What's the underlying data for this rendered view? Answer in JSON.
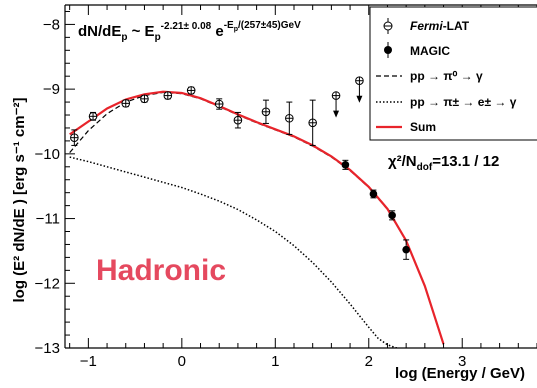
{
  "colors": {
    "sum": "#e8242b",
    "badge": "#e5495f",
    "axis": "#000000"
  },
  "annotations": {
    "formula_base": "dN/dE",
    "formula_sub": "p",
    "formula_mid": " ~ E",
    "formula_sub2": "p",
    "formula_exp": "-2.21± 0.08",
    "formula_e": " e",
    "formula_exp2": "-E",
    "formula_exp2_sub": "p",
    "formula_exp2_tail": "/(257±45)GeV",
    "chi2_text": "χ²/N",
    "chi2_sub": "dof",
    "chi2_val": "=13.1 / 12",
    "badge": "Hadronic"
  },
  "legend": {
    "fermi_name": "Fermi",
    "fermi_suffix": "-LAT",
    "magic": "MAGIC",
    "pp_pi0": "pp →  π⁰ → γ",
    "pp_pipm": "pp →  π± → e± → γ",
    "sum": "Sum"
  },
  "chart_data": {
    "type": "line",
    "xlabel": "log (Energy / GeV)",
    "ylabel": "log (E² dN/dE ) [erg s⁻¹ cm⁻²]",
    "xlim": [
      -1.25,
      3.8
    ],
    "ylim": [
      -13,
      -7.7
    ],
    "xticks": [
      -1,
      0,
      1,
      2,
      3
    ],
    "xticklabels": [
      "−1",
      "0",
      "1",
      "2",
      "3"
    ],
    "yticks": [
      -13,
      -12,
      -11,
      -10,
      -9,
      -8
    ],
    "yticklabels": [
      "−13",
      "−12",
      "−11",
      "−10",
      "−9",
      "−8"
    ],
    "series": [
      {
        "name": "Fermi-LAT",
        "kind": "errorbar",
        "points": [
          {
            "x": -1.15,
            "y": -9.75,
            "err": 0.12
          },
          {
            "x": -0.95,
            "y": -9.42,
            "err": 0.06
          },
          {
            "x": -0.6,
            "y": -9.22,
            "err": 0.05
          },
          {
            "x": -0.4,
            "y": -9.15,
            "err": 0.05
          },
          {
            "x": -0.15,
            "y": -9.1,
            "err": 0.05
          },
          {
            "x": 0.1,
            "y": -9.02,
            "err": 0.05
          },
          {
            "x": 0.4,
            "y": -9.23,
            "err": 0.08
          },
          {
            "x": 0.6,
            "y": -9.48,
            "err": 0.12
          },
          {
            "x": 0.9,
            "y": -9.35,
            "err": 0.18
          },
          {
            "x": 1.15,
            "y": -9.45,
            "err": 0.25
          },
          {
            "x": 1.4,
            "y": -9.52,
            "err": 0.35
          }
        ],
        "upper_limits": [
          {
            "x": 1.65,
            "y": -9.1
          },
          {
            "x": 1.9,
            "y": -8.87
          }
        ]
      },
      {
        "name": "MAGIC",
        "kind": "errorbar",
        "points": [
          {
            "x": 1.75,
            "y": -10.17,
            "err": 0.07
          },
          {
            "x": 2.05,
            "y": -10.62,
            "err": 0.06
          },
          {
            "x": 2.25,
            "y": -10.95,
            "err": 0.07
          },
          {
            "x": 2.4,
            "y": -11.48,
            "err": 0.15
          }
        ]
      },
      {
        "name": "pp → π⁰ → γ",
        "kind": "dashed",
        "x": [
          -1.2,
          -1.0,
          -0.8,
          -0.6,
          -0.4,
          -0.2,
          0.0,
          0.2,
          0.4,
          0.6,
          0.8,
          1.0,
          1.2,
          1.4,
          1.6,
          1.8,
          2.0,
          2.2,
          2.4,
          2.6,
          2.8
        ],
        "y": [
          -9.98,
          -9.64,
          -9.38,
          -9.2,
          -9.1,
          -9.05,
          -9.07,
          -9.15,
          -9.27,
          -9.4,
          -9.52,
          -9.63,
          -9.74,
          -9.88,
          -10.05,
          -10.26,
          -10.52,
          -10.86,
          -11.35,
          -12.05,
          -12.95
        ]
      },
      {
        "name": "pp → π± → e± → γ",
        "kind": "dotted",
        "x": [
          -1.2,
          -1.0,
          -0.8,
          -0.6,
          -0.4,
          -0.2,
          0.0,
          0.2,
          0.4,
          0.6,
          0.8,
          1.0,
          1.2,
          1.4,
          1.6,
          1.8,
          2.0,
          2.1,
          2.2,
          2.3
        ],
        "y": [
          -10.05,
          -10.12,
          -10.2,
          -10.28,
          -10.36,
          -10.44,
          -10.52,
          -10.62,
          -10.73,
          -10.86,
          -11.02,
          -11.2,
          -11.42,
          -11.68,
          -11.98,
          -12.32,
          -12.68,
          -12.85,
          -12.95,
          -13.0
        ]
      },
      {
        "name": "Sum",
        "kind": "solid",
        "x": [
          -1.2,
          -1.0,
          -0.8,
          -0.6,
          -0.4,
          -0.2,
          0.0,
          0.2,
          0.4,
          0.6,
          0.8,
          1.0,
          1.2,
          1.4,
          1.6,
          1.8,
          2.0,
          2.2,
          2.4,
          2.6,
          2.8
        ],
        "y": [
          -9.7,
          -9.5,
          -9.3,
          -9.16,
          -9.08,
          -9.04,
          -9.06,
          -9.14,
          -9.26,
          -9.39,
          -9.51,
          -9.62,
          -9.73,
          -9.87,
          -10.04,
          -10.25,
          -10.51,
          -10.85,
          -11.34,
          -12.04,
          -12.94
        ]
      }
    ]
  }
}
